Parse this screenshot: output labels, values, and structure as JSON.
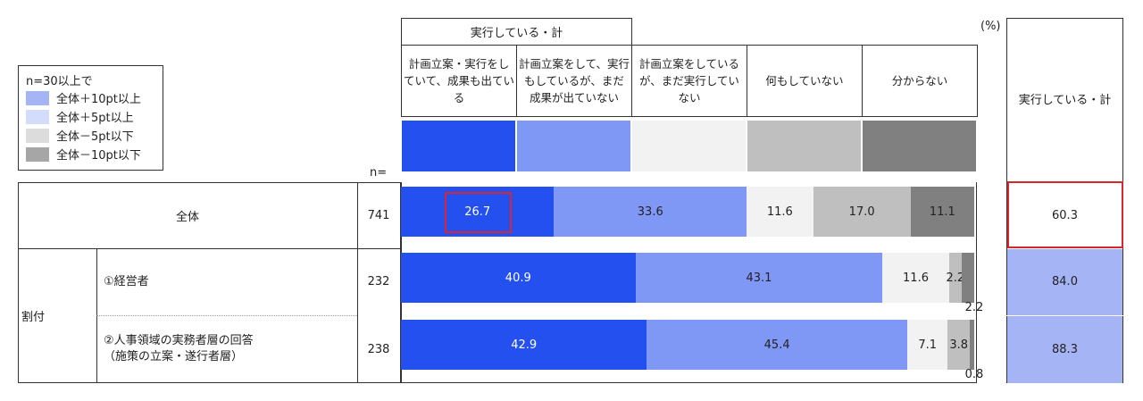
{
  "chart_data": {
    "type": "stacked-bar-h",
    "group_header": "実行している・計",
    "unit": "(%)",
    "n_label": "n=",
    "total_header": "実行している・計",
    "legend": {
      "title": "n=30以上で",
      "items": [
        {
          "label": "全体＋10pt以上",
          "color": "#a4b4f4"
        },
        {
          "label": "全体＋5pt以上",
          "color": "#d4dcfb"
        },
        {
          "label": "全体－5pt以下",
          "color": "#dcdcdc"
        },
        {
          "label": "全体－10pt以下",
          "color": "#a6a6a6"
        }
      ]
    },
    "group_label": "割付",
    "categories": [
      "全体",
      "①経営者",
      "②人事領域の実務者層の回答\n（施策の立案・遂行者層）"
    ],
    "n": [
      741,
      232,
      238
    ],
    "xlim": [
      0,
      100
    ],
    "series": [
      {
        "name": "計画立案・実行をしていて、成果も出ている",
        "color": "#2450f0",
        "values": [
          26.7,
          40.9,
          42.9
        ],
        "value_labels": [
          "26.7",
          "40.9",
          "42.9"
        ]
      },
      {
        "name": "計画立案をして、実行もしているが、まだ成果が出ていない",
        "color": "#7f97f5",
        "values": [
          33.6,
          43.1,
          45.4
        ],
        "value_labels": [
          "33.6",
          "43.1",
          "45.4"
        ]
      },
      {
        "name": "計画立案をしているが、まだ実行していない",
        "color": "#f2f2f2",
        "values": [
          11.6,
          11.6,
          7.1
        ],
        "value_labels": [
          "11.6",
          "11.6",
          "7.1"
        ]
      },
      {
        "name": "何もしていない",
        "color": "#bfbfbf",
        "values": [
          17.0,
          2.2,
          3.8
        ],
        "value_labels": [
          "17.0",
          "2.2",
          "3.8"
        ]
      },
      {
        "name": "分からない",
        "color": "#808080",
        "values": [
          11.1,
          2.2,
          0.8
        ],
        "value_labels": [
          "11.1",
          "2.2",
          "0.8"
        ]
      }
    ],
    "totals": {
      "values": [
        60.3,
        84.0,
        88.3
      ],
      "value_labels": [
        "60.3",
        "84.0",
        "88.3"
      ],
      "colors": [
        "#ffffff",
        "#a4b4f4",
        "#a4b4f4"
      ]
    }
  }
}
